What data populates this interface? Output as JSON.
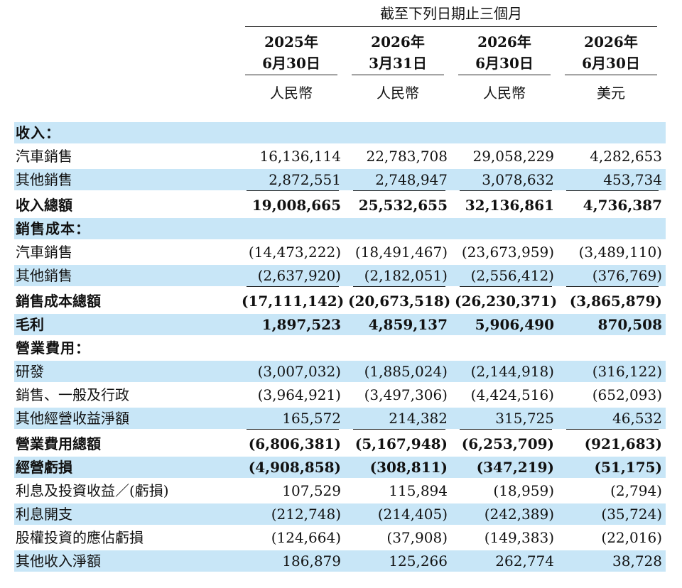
{
  "header": {
    "period_title": "截至下列日期止三個月",
    "columns": [
      {
        "year": "2025年",
        "date": "6月30日",
        "currency": "人民幣"
      },
      {
        "year": "2026年",
        "date": "3月31日",
        "currency": "人民幣"
      },
      {
        "year": "2026年",
        "date": "6月30日",
        "currency": "人民幣"
      },
      {
        "year": "2026年",
        "date": "6月30日",
        "currency": "美元"
      }
    ]
  },
  "rows": [
    {
      "label": "收入：",
      "values": [
        "",
        "",
        "",
        ""
      ],
      "style": "header",
      "shaded": true
    },
    {
      "label": "汽車銷售",
      "values": [
        "16,136,114",
        "22,783,708",
        "29,058,229",
        "4,282,653"
      ],
      "style": "normal",
      "shaded": false
    },
    {
      "label": "其他銷售",
      "values": [
        "2,872,551",
        "2,748,947",
        "3,078,632",
        "453,734"
      ],
      "style": "normal",
      "shaded": true
    },
    {
      "label": "收入總額",
      "values": [
        "19,008,665",
        "25,532,655",
        "32,136,861",
        "4,736,387"
      ],
      "style": "total",
      "shaded": false
    },
    {
      "label": "銷售成本：",
      "values": [
        "",
        "",
        "",
        ""
      ],
      "style": "header",
      "shaded": true
    },
    {
      "label": "汽車銷售",
      "values": [
        "(14,473,222)",
        "(18,491,467)",
        "(23,673,959)",
        "(3,489,110)"
      ],
      "style": "normal",
      "shaded": false
    },
    {
      "label": "其他銷售",
      "values": [
        "(2,637,920)",
        "(2,182,051)",
        "(2,556,412)",
        "(376,769)"
      ],
      "style": "normal",
      "shaded": true
    },
    {
      "label": "銷售成本總額",
      "values": [
        "(17,111,142)",
        "(20,673,518)",
        "(26,230,371)",
        "(3,865,879)"
      ],
      "style": "total",
      "shaded": false
    },
    {
      "label": "毛利",
      "values": [
        "1,897,523",
        "4,859,137",
        "5,906,490",
        "870,508"
      ],
      "style": "bold",
      "shaded": true
    },
    {
      "label": "營業費用：",
      "values": [
        "",
        "",
        "",
        ""
      ],
      "style": "header",
      "shaded": false
    },
    {
      "label": "研發",
      "values": [
        "(3,007,032)",
        "(1,885,024)",
        "(2,144,918)",
        "(316,122)"
      ],
      "style": "normal",
      "shaded": true
    },
    {
      "label": "銷售、一般及行政",
      "values": [
        "(3,964,921)",
        "(3,497,306)",
        "(4,424,516)",
        "(652,093)"
      ],
      "style": "normal",
      "shaded": false
    },
    {
      "label": "其他經營收益淨額",
      "values": [
        "165,572",
        "214,382",
        "315,725",
        "46,532"
      ],
      "style": "normal",
      "shaded": true
    },
    {
      "label": "營業費用總額",
      "values": [
        "(6,806,381)",
        "(5,167,948)",
        "(6,253,709)",
        "(921,683)"
      ],
      "style": "total",
      "shaded": false
    },
    {
      "label": "經營虧損",
      "values": [
        "(4,908,858)",
        "(308,811)",
        "(347,219)",
        "(51,175)"
      ],
      "style": "bold",
      "shaded": true
    },
    {
      "label": "利息及投資收益／(虧損)",
      "values": [
        "107,529",
        "115,894",
        "(18,959)",
        "(2,794)"
      ],
      "style": "normal",
      "shaded": false
    },
    {
      "label": "利息開支",
      "values": [
        "(212,748)",
        "(214,405)",
        "(242,389)",
        "(35,724)"
      ],
      "style": "normal",
      "shaded": true
    },
    {
      "label": "股權投資的應佔虧損",
      "values": [
        "(124,664)",
        "(37,908)",
        "(149,383)",
        "(22,016)"
      ],
      "style": "normal",
      "shaded": false
    },
    {
      "label": "其他收入淨額",
      "values": [
        "186,879",
        "125,266",
        "262,774",
        "38,728"
      ],
      "style": "normal",
      "shaded": true
    }
  ]
}
